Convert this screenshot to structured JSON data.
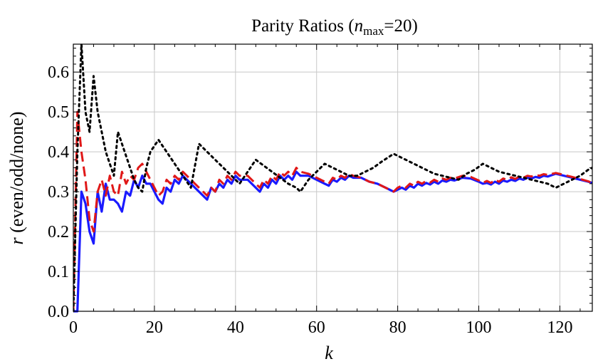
{
  "chart_data": {
    "type": "line",
    "title_main": "Parity Ratios (",
    "title_var": "n",
    "title_sub": "max",
    "title_rest": "=20)",
    "xlabel": "k",
    "ylabel_var": "r",
    "ylabel_rest": " (even/odd/none)",
    "xlim": [
      0,
      128
    ],
    "ylim": [
      0,
      0.67
    ],
    "xticks": [
      0,
      20,
      40,
      60,
      80,
      100,
      120
    ],
    "yticks": [
      0.0,
      0.1,
      0.2,
      0.3,
      0.4,
      0.5,
      0.6
    ],
    "xtick_labels": [
      "0",
      "20",
      "40",
      "60",
      "80",
      "100",
      "120"
    ],
    "ytick_labels": [
      "0.0",
      "0.1",
      "0.2",
      "0.3",
      "0.4",
      "0.5",
      "0.6"
    ],
    "grid": true,
    "series": [
      {
        "color": "#1a1aff",
        "style": "solid",
        "points": [
          [
            0,
            0
          ],
          [
            1,
            0
          ],
          [
            2,
            0.3
          ],
          [
            3,
            0.27
          ],
          [
            4,
            0.2
          ],
          [
            5,
            0.17
          ],
          [
            6,
            0.3
          ],
          [
            7,
            0.25
          ],
          [
            8,
            0.32
          ],
          [
            9,
            0.28
          ],
          [
            10,
            0.28
          ],
          [
            11,
            0.27
          ],
          [
            12,
            0.25
          ],
          [
            13,
            0.3
          ],
          [
            14,
            0.29
          ],
          [
            15,
            0.33
          ],
          [
            16,
            0.31
          ],
          [
            17,
            0.34
          ],
          [
            18,
            0.32
          ],
          [
            19,
            0.32
          ],
          [
            20,
            0.3
          ],
          [
            21,
            0.28
          ],
          [
            22,
            0.27
          ],
          [
            23,
            0.31
          ],
          [
            24,
            0.3
          ],
          [
            25,
            0.33
          ],
          [
            26,
            0.32
          ],
          [
            27,
            0.34
          ],
          [
            28,
            0.33
          ],
          [
            30,
            0.31
          ],
          [
            32,
            0.29
          ],
          [
            33,
            0.28
          ],
          [
            34,
            0.31
          ],
          [
            35,
            0.3
          ],
          [
            36,
            0.32
          ],
          [
            37,
            0.31
          ],
          [
            38,
            0.33
          ],
          [
            39,
            0.32
          ],
          [
            40,
            0.34
          ],
          [
            41,
            0.33
          ],
          [
            43,
            0.33
          ],
          [
            45,
            0.31
          ],
          [
            46,
            0.3
          ],
          [
            47,
            0.32
          ],
          [
            48,
            0.31
          ],
          [
            49,
            0.33
          ],
          [
            50,
            0.32
          ],
          [
            51,
            0.34
          ],
          [
            52,
            0.33
          ],
          [
            53,
            0.34
          ],
          [
            54,
            0.33
          ],
          [
            55,
            0.35
          ],
          [
            56,
            0.34
          ],
          [
            58,
            0.34
          ],
          [
            60,
            0.33
          ],
          [
            62,
            0.32
          ],
          [
            63,
            0.315
          ],
          [
            64,
            0.33
          ],
          [
            65,
            0.325
          ],
          [
            66,
            0.335
          ],
          [
            67,
            0.33
          ],
          [
            68,
            0.34
          ],
          [
            69,
            0.335
          ],
          [
            71,
            0.335
          ],
          [
            73,
            0.325
          ],
          [
            75,
            0.32
          ],
          [
            77,
            0.31
          ],
          [
            79,
            0.3
          ],
          [
            80,
            0.305
          ],
          [
            81,
            0.31
          ],
          [
            82,
            0.305
          ],
          [
            83,
            0.315
          ],
          [
            84,
            0.31
          ],
          [
            85,
            0.32
          ],
          [
            86,
            0.315
          ],
          [
            87,
            0.322
          ],
          [
            88,
            0.318
          ],
          [
            89,
            0.325
          ],
          [
            90,
            0.32
          ],
          [
            91,
            0.328
          ],
          [
            92,
            0.325
          ],
          [
            93,
            0.33
          ],
          [
            94,
            0.328
          ],
          [
            96,
            0.335
          ],
          [
            98,
            0.333
          ],
          [
            100,
            0.325
          ],
          [
            101,
            0.32
          ],
          [
            102,
            0.322
          ],
          [
            103,
            0.318
          ],
          [
            104,
            0.325
          ],
          [
            105,
            0.32
          ],
          [
            106,
            0.328
          ],
          [
            107,
            0.325
          ],
          [
            108,
            0.33
          ],
          [
            109,
            0.327
          ],
          [
            110,
            0.333
          ],
          [
            111,
            0.33
          ],
          [
            112,
            0.335
          ],
          [
            113,
            0.333
          ],
          [
            114,
            0.337
          ],
          [
            115,
            0.335
          ],
          [
            116,
            0.34
          ],
          [
            117,
            0.338
          ],
          [
            119,
            0.345
          ],
          [
            121,
            0.34
          ],
          [
            123,
            0.335
          ],
          [
            125,
            0.33
          ],
          [
            127,
            0.325
          ],
          [
            128,
            0.322
          ]
        ]
      },
      {
        "color": "#e01818",
        "style": "dashed",
        "points": [
          [
            0,
            0
          ],
          [
            1,
            0.5
          ],
          [
            2,
            0.4
          ],
          [
            3,
            0.33
          ],
          [
            4,
            0.23
          ],
          [
            5,
            0.2
          ],
          [
            6,
            0.3
          ],
          [
            7,
            0.33
          ],
          [
            8,
            0.29
          ],
          [
            9,
            0.34
          ],
          [
            10,
            0.3
          ],
          [
            11,
            0.29
          ],
          [
            12,
            0.35
          ],
          [
            13,
            0.32
          ],
          [
            14,
            0.34
          ],
          [
            15,
            0.33
          ],
          [
            16,
            0.36
          ],
          [
            17,
            0.37
          ],
          [
            18,
            0.35
          ],
          [
            19,
            0.33
          ],
          [
            20,
            0.31
          ],
          [
            21,
            0.29
          ],
          [
            22,
            0.3
          ],
          [
            23,
            0.33
          ],
          [
            24,
            0.32
          ],
          [
            25,
            0.34
          ],
          [
            26,
            0.33
          ],
          [
            27,
            0.35
          ],
          [
            28,
            0.34
          ],
          [
            30,
            0.32
          ],
          [
            32,
            0.3
          ],
          [
            33,
            0.29
          ],
          [
            34,
            0.31
          ],
          [
            35,
            0.3
          ],
          [
            36,
            0.33
          ],
          [
            37,
            0.32
          ],
          [
            38,
            0.34
          ],
          [
            39,
            0.33
          ],
          [
            40,
            0.35
          ],
          [
            41,
            0.34
          ],
          [
            43,
            0.34
          ],
          [
            45,
            0.32
          ],
          [
            46,
            0.31
          ],
          [
            47,
            0.33
          ],
          [
            48,
            0.32
          ],
          [
            49,
            0.34
          ],
          [
            50,
            0.33
          ],
          [
            51,
            0.35
          ],
          [
            52,
            0.34
          ],
          [
            53,
            0.35
          ],
          [
            54,
            0.34
          ],
          [
            55,
            0.36
          ],
          [
            56,
            0.35
          ],
          [
            58,
            0.345
          ],
          [
            60,
            0.335
          ],
          [
            62,
            0.325
          ],
          [
            63,
            0.32
          ],
          [
            64,
            0.335
          ],
          [
            65,
            0.33
          ],
          [
            66,
            0.34
          ],
          [
            67,
            0.335
          ],
          [
            68,
            0.345
          ],
          [
            69,
            0.34
          ],
          [
            71,
            0.335
          ],
          [
            73,
            0.325
          ],
          [
            75,
            0.32
          ],
          [
            77,
            0.31
          ],
          [
            79,
            0.3
          ],
          [
            80,
            0.31
          ],
          [
            81,
            0.315
          ],
          [
            82,
            0.31
          ],
          [
            83,
            0.32
          ],
          [
            84,
            0.315
          ],
          [
            85,
            0.325
          ],
          [
            86,
            0.32
          ],
          [
            87,
            0.327
          ],
          [
            88,
            0.323
          ],
          [
            89,
            0.33
          ],
          [
            90,
            0.325
          ],
          [
            91,
            0.333
          ],
          [
            92,
            0.33
          ],
          [
            93,
            0.335
          ],
          [
            94,
            0.333
          ],
          [
            96,
            0.34
          ],
          [
            98,
            0.337
          ],
          [
            100,
            0.328
          ],
          [
            101,
            0.322
          ],
          [
            102,
            0.327
          ],
          [
            103,
            0.322
          ],
          [
            104,
            0.33
          ],
          [
            105,
            0.325
          ],
          [
            106,
            0.333
          ],
          [
            107,
            0.33
          ],
          [
            108,
            0.336
          ],
          [
            109,
            0.332
          ],
          [
            110,
            0.338
          ],
          [
            111,
            0.335
          ],
          [
            112,
            0.34
          ],
          [
            113,
            0.338
          ],
          [
            114,
            0.342
          ],
          [
            115,
            0.34
          ],
          [
            116,
            0.344
          ],
          [
            117,
            0.342
          ],
          [
            119,
            0.347
          ],
          [
            121,
            0.342
          ],
          [
            123,
            0.337
          ],
          [
            125,
            0.332
          ],
          [
            127,
            0.326
          ],
          [
            128,
            0.322
          ]
        ]
      },
      {
        "color": "#000000",
        "style": "dotted",
        "points": [
          [
            0,
            0
          ],
          [
            1,
            0.4
          ],
          [
            2,
            0.67
          ],
          [
            3,
            0.5
          ],
          [
            4,
            0.45
          ],
          [
            5,
            0.59
          ],
          [
            6,
            0.5
          ],
          [
            7,
            0.45
          ],
          [
            8,
            0.4
          ],
          [
            9,
            0.37
          ],
          [
            10,
            0.34
          ],
          [
            11,
            0.45
          ],
          [
            12,
            0.42
          ],
          [
            13,
            0.39
          ],
          [
            14,
            0.36
          ],
          [
            15,
            0.33
          ],
          [
            16,
            0.31
          ],
          [
            17,
            0.3
          ],
          [
            18,
            0.36
          ],
          [
            19,
            0.4
          ],
          [
            21,
            0.43
          ],
          [
            23,
            0.4
          ],
          [
            25,
            0.37
          ],
          [
            27,
            0.34
          ],
          [
            29,
            0.31
          ],
          [
            31,
            0.42
          ],
          [
            33,
            0.4
          ],
          [
            35,
            0.38
          ],
          [
            37,
            0.36
          ],
          [
            39,
            0.34
          ],
          [
            41,
            0.32
          ],
          [
            43,
            0.35
          ],
          [
            45,
            0.38
          ],
          [
            47,
            0.365
          ],
          [
            49,
            0.35
          ],
          [
            51,
            0.335
          ],
          [
            53,
            0.32
          ],
          [
            55,
            0.31
          ],
          [
            56,
            0.3
          ],
          [
            58,
            0.33
          ],
          [
            60,
            0.35
          ],
          [
            62,
            0.37
          ],
          [
            64,
            0.36
          ],
          [
            66,
            0.35
          ],
          [
            68,
            0.34
          ],
          [
            70,
            0.34
          ],
          [
            72,
            0.35
          ],
          [
            74,
            0.36
          ],
          [
            76,
            0.375
          ],
          [
            79,
            0.395
          ],
          [
            81,
            0.385
          ],
          [
            83,
            0.375
          ],
          [
            85,
            0.365
          ],
          [
            87,
            0.355
          ],
          [
            89,
            0.345
          ],
          [
            91,
            0.34
          ],
          [
            93,
            0.335
          ],
          [
            95,
            0.33
          ],
          [
            97,
            0.345
          ],
          [
            99,
            0.355
          ],
          [
            101,
            0.37
          ],
          [
            103,
            0.36
          ],
          [
            105,
            0.35
          ],
          [
            107,
            0.345
          ],
          [
            109,
            0.34
          ],
          [
            111,
            0.335
          ],
          [
            113,
            0.33
          ],
          [
            115,
            0.325
          ],
          [
            117,
            0.32
          ],
          [
            119,
            0.31
          ],
          [
            121,
            0.32
          ],
          [
            123,
            0.33
          ],
          [
            125,
            0.34
          ],
          [
            127,
            0.355
          ],
          [
            128,
            0.36
          ]
        ]
      }
    ]
  }
}
